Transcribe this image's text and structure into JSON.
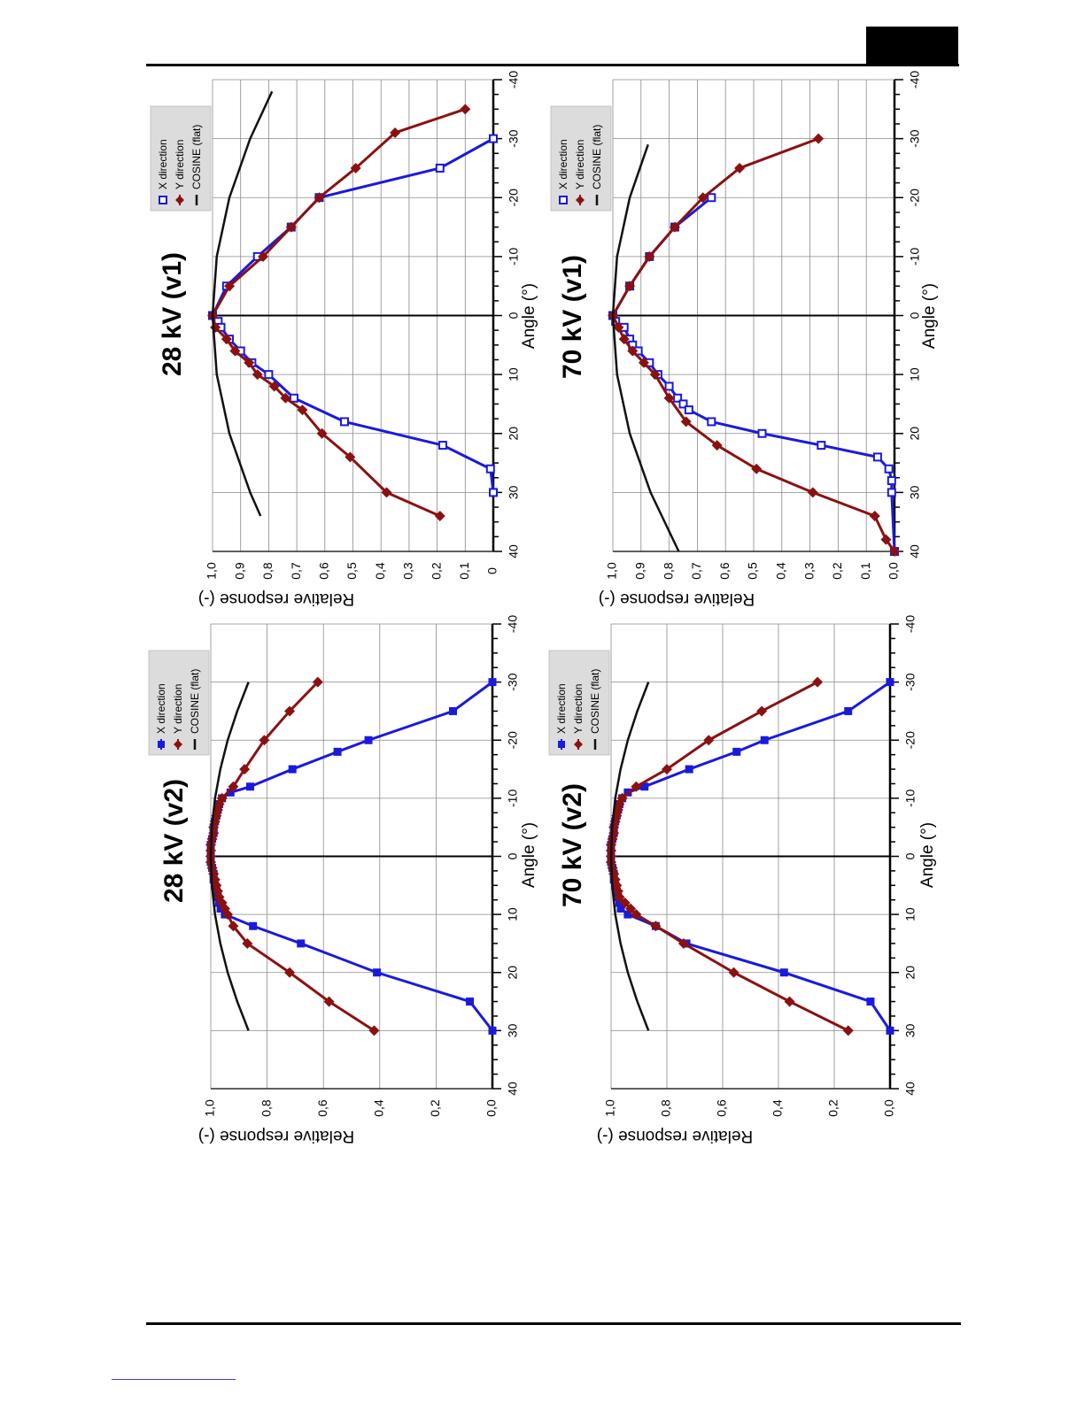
{
  "colors": {
    "x_direction": "#1a1adc",
    "y_direction": "#8b1111",
    "cosine": "#111111",
    "grid": "#8a8a8a",
    "legend_bg": "#dcdcdc"
  },
  "chart_data": [
    {
      "type": "line",
      "panel": "top-left",
      "title": "28 kV (v2)",
      "xlabel": "Angle (°)",
      "ylabel": "Relative response (-)",
      "xlim": [
        -40,
        40
      ],
      "ylim": [
        0,
        1
      ],
      "x_ticks": [
        "-40",
        "-30",
        "-20",
        "-10",
        "0",
        "10",
        "20",
        "30",
        "40"
      ],
      "y_ticks": [
        "0,0",
        "0,2",
        "0,4",
        "0,6",
        "0,8",
        "1,0"
      ],
      "grid": true,
      "legend_position": "bottom-right",
      "series": [
        {
          "name": "X direction",
          "marker": "filled-square",
          "color": "#1a1adc",
          "x": [
            -30,
            -25,
            -20,
            -18,
            -15,
            -12,
            -11,
            -10,
            -9,
            -8,
            -7,
            -6,
            -5,
            -4,
            -3,
            -2,
            -1,
            0,
            1,
            2,
            3,
            4,
            5,
            6,
            7,
            8,
            9,
            10,
            12,
            15,
            20,
            25,
            30
          ],
          "y": [
            0.0,
            0.14,
            0.44,
            0.55,
            0.71,
            0.86,
            0.93,
            0.96,
            0.97,
            0.975,
            0.98,
            0.985,
            0.99,
            0.99,
            0.995,
            1.0,
            1.0,
            1.0,
            1.0,
            0.995,
            0.99,
            0.99,
            0.985,
            0.98,
            0.975,
            0.97,
            0.965,
            0.95,
            0.85,
            0.68,
            0.41,
            0.08,
            0.0
          ]
        },
        {
          "name": "Y direction",
          "marker": "diamond",
          "color": "#8b1111",
          "x": [
            -30,
            -25,
            -20,
            -15,
            -12,
            -10,
            -9,
            -8,
            -7,
            -6,
            -5,
            -4,
            -3,
            -2,
            -1,
            0,
            1,
            2,
            3,
            4,
            5,
            6,
            7,
            8,
            9,
            10,
            12,
            15,
            20,
            25,
            30
          ],
          "y": [
            0.62,
            0.72,
            0.81,
            0.88,
            0.92,
            0.96,
            0.97,
            0.975,
            0.98,
            0.985,
            0.99,
            0.99,
            0.995,
            1.0,
            1.0,
            1.0,
            1.0,
            0.995,
            0.99,
            0.985,
            0.98,
            0.975,
            0.97,
            0.96,
            0.95,
            0.94,
            0.92,
            0.87,
            0.72,
            0.58,
            0.42
          ]
        },
        {
          "name": "COSINE (flat)",
          "marker": "none",
          "color": "#111111",
          "x": [
            -30,
            -25,
            -20,
            -15,
            -10,
            -5,
            0,
            5,
            10,
            15,
            20,
            25,
            30
          ],
          "y": [
            0.866,
            0.906,
            0.94,
            0.966,
            0.985,
            0.996,
            1.0,
            0.996,
            0.985,
            0.966,
            0.94,
            0.906,
            0.866
          ]
        }
      ]
    },
    {
      "type": "line",
      "panel": "top-right",
      "title": "28 kV (v1)",
      "xlabel": "Angle (°)",
      "ylabel": "Relative response (-)",
      "xlim": [
        -40,
        40
      ],
      "ylim": [
        0,
        1
      ],
      "x_ticks": [
        "-40",
        "-30",
        "-20",
        "-10",
        "0",
        "10",
        "20",
        "30",
        "40"
      ],
      "y_ticks": [
        "0",
        "0,1",
        "0,2",
        "0,3",
        "0,4",
        "0,5",
        "0,6",
        "0,7",
        "0,8",
        "0,9",
        "1,0"
      ],
      "grid": true,
      "legend_position": "bottom-right",
      "series": [
        {
          "name": "X direction",
          "marker": "open-square",
          "color": "#1a1adc",
          "x": [
            -30,
            -25,
            -20,
            -15,
            -10,
            -5,
            0,
            1,
            2,
            4,
            6,
            8,
            10,
            14,
            18,
            22,
            26,
            30
          ],
          "y": [
            0.0,
            0.19,
            0.62,
            0.72,
            0.84,
            0.95,
            1.0,
            0.98,
            0.97,
            0.94,
            0.9,
            0.86,
            0.8,
            0.71,
            0.53,
            0.18,
            0.01,
            0.0
          ]
        },
        {
          "name": "Y direction",
          "marker": "diamond",
          "color": "#8b1111",
          "x": [
            -35,
            -31,
            -25,
            -20,
            -15,
            -10,
            -5,
            0,
            2,
            4,
            6,
            8,
            10,
            12,
            14,
            16,
            20,
            24,
            30,
            34
          ],
          "y": [
            0.1,
            0.35,
            0.49,
            0.62,
            0.72,
            0.82,
            0.94,
            1.0,
            0.99,
            0.95,
            0.92,
            0.87,
            0.84,
            0.78,
            0.74,
            0.68,
            0.61,
            0.51,
            0.38,
            0.19
          ]
        },
        {
          "name": "COSINE (flat)",
          "marker": "none",
          "color": "#111111",
          "x": [
            -38,
            -30,
            -20,
            -10,
            0,
            10,
            20,
            30,
            34
          ],
          "y": [
            0.788,
            0.866,
            0.94,
            0.985,
            1.0,
            0.985,
            0.94,
            0.866,
            0.829
          ]
        }
      ]
    },
    {
      "type": "line",
      "panel": "bottom-left",
      "title": "70 kV (v2)",
      "xlabel": "Angle (°)",
      "ylabel": "Relative response (-)",
      "xlim": [
        -40,
        40
      ],
      "ylim": [
        0,
        1
      ],
      "x_ticks": [
        "-40",
        "-30",
        "-20",
        "-10",
        "0",
        "10",
        "20",
        "30",
        "40"
      ],
      "y_ticks": [
        "0,0",
        "0,2",
        "0,4",
        "0,6",
        "0,8",
        "1,0"
      ],
      "grid": true,
      "legend_position": "bottom-right",
      "series": [
        {
          "name": "X direction",
          "marker": "filled-square",
          "color": "#1a1adc",
          "x": [
            -30,
            -25,
            -20,
            -18,
            -15,
            -12,
            -11,
            -10,
            -9,
            -8,
            -7,
            -6,
            -5,
            -4,
            -3,
            -2,
            -1,
            0,
            1,
            2,
            3,
            4,
            5,
            6,
            7,
            8,
            9,
            10,
            12,
            15,
            20,
            25,
            30
          ],
          "y": [
            0.0,
            0.15,
            0.45,
            0.55,
            0.72,
            0.88,
            0.94,
            0.96,
            0.97,
            0.975,
            0.98,
            0.985,
            0.99,
            0.99,
            0.995,
            1.0,
            1.0,
            1.0,
            1.0,
            0.995,
            0.99,
            0.99,
            0.985,
            0.98,
            0.975,
            0.97,
            0.965,
            0.94,
            0.84,
            0.73,
            0.38,
            0.07,
            0.0
          ]
        },
        {
          "name": "Y direction",
          "marker": "diamond",
          "color": "#8b1111",
          "x": [
            -30,
            -25,
            -20,
            -15,
            -12,
            -10,
            -9,
            -8,
            -7,
            -6,
            -5,
            -4,
            -3,
            -2,
            -1,
            0,
            1,
            2,
            3,
            4,
            5,
            6,
            7,
            8,
            9,
            10,
            12,
            15,
            20,
            25,
            30
          ],
          "y": [
            0.26,
            0.46,
            0.65,
            0.8,
            0.91,
            0.96,
            0.97,
            0.975,
            0.98,
            0.985,
            0.99,
            0.99,
            0.995,
            1.0,
            1.0,
            1.0,
            1.0,
            0.995,
            0.99,
            0.985,
            0.98,
            0.975,
            0.97,
            0.95,
            0.93,
            0.91,
            0.84,
            0.74,
            0.56,
            0.36,
            0.15
          ]
        },
        {
          "name": "COSINE (flat)",
          "marker": "none",
          "color": "#111111",
          "x": [
            -30,
            -25,
            -20,
            -15,
            -10,
            -5,
            0,
            5,
            10,
            15,
            20,
            25,
            30
          ],
          "y": [
            0.866,
            0.906,
            0.94,
            0.966,
            0.985,
            0.996,
            1.0,
            0.996,
            0.985,
            0.966,
            0.94,
            0.906,
            0.866
          ]
        }
      ]
    },
    {
      "type": "line",
      "panel": "bottom-right",
      "title": "70 kV (v1)",
      "xlabel": "Angle (°)",
      "ylabel": "Relative response (-)",
      "xlim": [
        -40,
        40
      ],
      "ylim": [
        0,
        1
      ],
      "x_ticks": [
        "-40",
        "-30",
        "-20",
        "-10",
        "0",
        "10",
        "20",
        "30",
        "40"
      ],
      "y_ticks": [
        "0,0",
        "0,1",
        "0,2",
        "0,3",
        "0,4",
        "0,5",
        "0,6",
        "0,7",
        "0,8",
        "0,9",
        "1,0"
      ],
      "grid": true,
      "legend_position": "bottom-right",
      "series": [
        {
          "name": "X direction",
          "marker": "open-square",
          "color": "#1a1adc",
          "x": [
            -20,
            -15,
            -10,
            -5,
            0,
            1,
            2,
            4,
            5,
            6,
            8,
            10,
            12,
            14,
            15,
            16,
            18,
            20,
            22,
            24,
            26,
            28,
            30,
            40
          ],
          "y": [
            0.65,
            0.78,
            0.87,
            0.94,
            1.0,
            0.99,
            0.96,
            0.94,
            0.93,
            0.91,
            0.87,
            0.84,
            0.8,
            0.77,
            0.75,
            0.73,
            0.65,
            0.47,
            0.26,
            0.06,
            0.02,
            0.01,
            0.01,
            0.0
          ]
        },
        {
          "name": "Y direction",
          "marker": "diamond",
          "color": "#8b1111",
          "x": [
            -30,
            -25,
            -20,
            -15,
            -10,
            -5,
            0,
            2,
            4,
            6,
            8,
            10,
            14,
            18,
            22,
            26,
            30,
            34,
            38,
            40
          ],
          "y": [
            0.27,
            0.55,
            0.68,
            0.78,
            0.87,
            0.94,
            1.0,
            0.98,
            0.96,
            0.93,
            0.89,
            0.85,
            0.8,
            0.74,
            0.63,
            0.49,
            0.29,
            0.07,
            0.03,
            0.0
          ]
        },
        {
          "name": "COSINE (flat)",
          "marker": "none",
          "color": "#111111",
          "x": [
            -29,
            -20,
            -10,
            0,
            10,
            20,
            30,
            40
          ],
          "y": [
            0.875,
            0.94,
            0.985,
            1.0,
            0.985,
            0.94,
            0.866,
            0.766
          ]
        }
      ]
    }
  ]
}
